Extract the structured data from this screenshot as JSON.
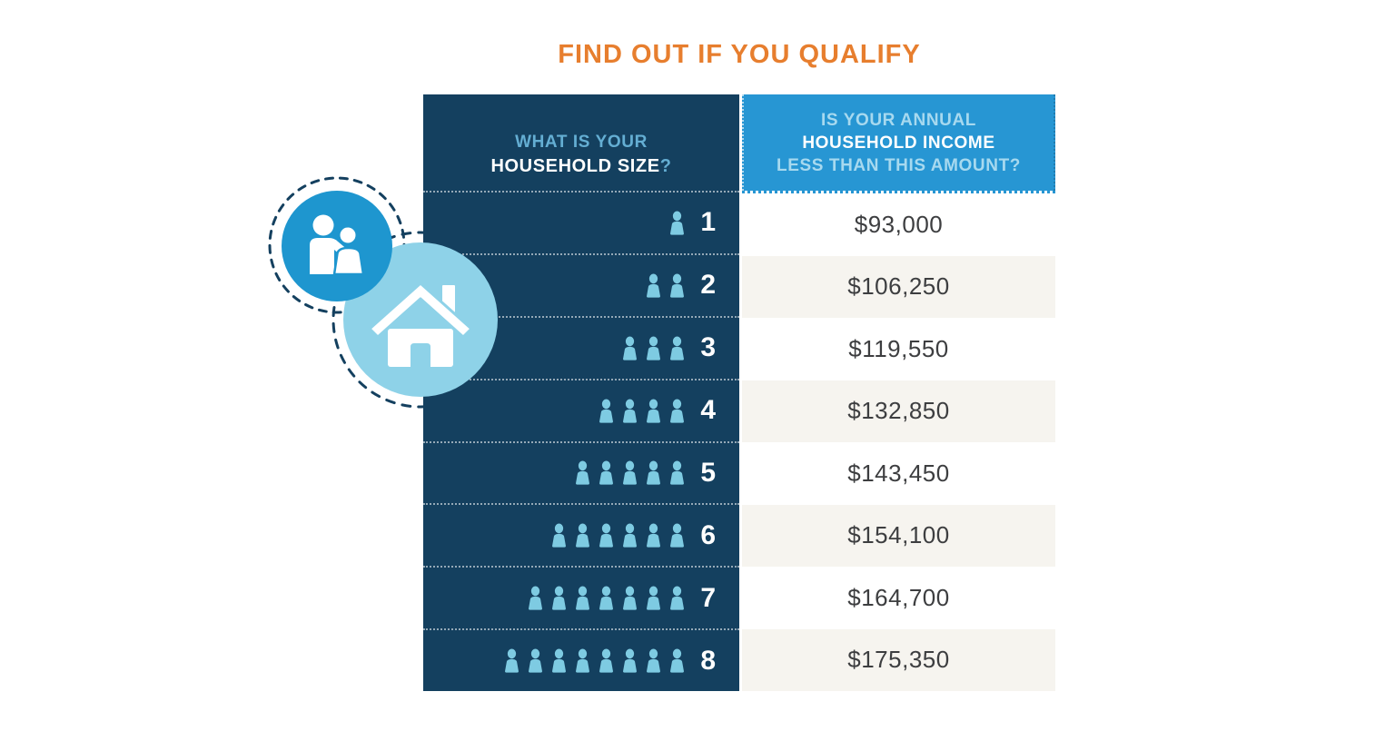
{
  "title": "FIND OUT IF YOU QUALIFY",
  "colors": {
    "navy": "#14405f",
    "header_blue": "#2796d3",
    "person_icon_blue": "#7ecbe2",
    "people_circle_blue": "#1e96cf",
    "house_circle_blue": "#8ed2e8",
    "row_alt_cream": "#f6f4ef",
    "title_orange": "#e77e2e",
    "income_text": "#3d3e40"
  },
  "table": {
    "left_header": {
      "line1": "WHAT IS YOUR",
      "line2": "HOUSEHOLD SIZE",
      "question_mark": "?"
    },
    "right_header": {
      "line1": "IS YOUR ANNUAL",
      "line2": "HOUSEHOLD INCOME",
      "line3": "LESS THAN THIS AMOUNT?"
    },
    "rows": [
      {
        "household_size": 1,
        "income": "$93,000"
      },
      {
        "household_size": 2,
        "income": "$106,250"
      },
      {
        "household_size": 3,
        "income": "$119,550"
      },
      {
        "household_size": 4,
        "income": "$132,850"
      },
      {
        "household_size": 5,
        "income": "$143,450"
      },
      {
        "household_size": 6,
        "income": "$154,100"
      },
      {
        "household_size": 7,
        "income": "$164,700"
      },
      {
        "household_size": 8,
        "income": "$175,350"
      }
    ]
  },
  "decorations": {
    "people_badge": "two-people-icon",
    "house_badge": "house-icon"
  },
  "chart_data": {
    "type": "table",
    "title": "FIND OUT IF YOU QUALIFY",
    "columns": [
      "What is your household size?",
      "Is your annual household income less than this amount?"
    ],
    "rows": [
      [
        1,
        "$93,000"
      ],
      [
        2,
        "$106,250"
      ],
      [
        3,
        "$119,550"
      ],
      [
        4,
        "$132,850"
      ],
      [
        5,
        "$143,450"
      ],
      [
        6,
        "$154,100"
      ],
      [
        7,
        "$164,700"
      ],
      [
        8,
        "$175,350"
      ]
    ]
  }
}
